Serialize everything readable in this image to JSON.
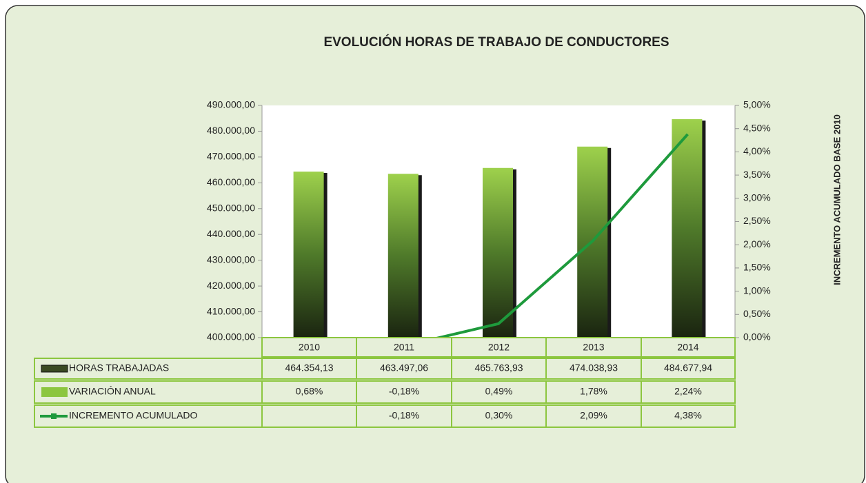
{
  "chart_data": {
    "type": "bar",
    "title": "EVOLUCIÓN HORAS DE TRABAJO DE CONDUCTORES",
    "y2_label": "INCREMENTO ACUMULADO BASE 2010",
    "categories": [
      "2010",
      "2011",
      "2012",
      "2013",
      "2014"
    ],
    "series": [
      {
        "name": "HORAS TRABAJADAS",
        "color": "#8cc63f",
        "values": [
          464354.13,
          463497.06,
          465763.93,
          474038.93,
          484677.94
        ],
        "value_labels": [
          "464.354,13",
          "463.497,06",
          "465.763,93",
          "474.038,93",
          "484.677,94"
        ]
      },
      {
        "name": "VARIACIÓN ANUAL",
        "color": "#8cc63f",
        "values": [
          0.68,
          -0.18,
          0.49,
          1.78,
          2.24
        ],
        "value_labels": [
          "0,68%",
          "-0,18%",
          "0,49%",
          "1,78%",
          "2,24%"
        ]
      },
      {
        "name": "INCREMENTO ACUMULADO",
        "color": "#1e9a3c",
        "axis": "y2",
        "values": [
          null,
          -0.18,
          0.3,
          2.09,
          4.38
        ],
        "value_labels": [
          null,
          "-0,18%",
          "0,30%",
          "2,09%",
          "4,38%"
        ]
      }
    ],
    "ylim": [
      400000,
      490000
    ],
    "yticks": [
      {
        "value": 400000,
        "label": "400.000,00"
      },
      {
        "value": 410000,
        "label": "410.000,00"
      },
      {
        "value": 420000,
        "label": "420.000,00"
      },
      {
        "value": 430000,
        "label": "430.000,00"
      },
      {
        "value": 440000,
        "label": "440.000,00"
      },
      {
        "value": 450000,
        "label": "450.000,00"
      },
      {
        "value": 460000,
        "label": "460.000,00"
      },
      {
        "value": 470000,
        "label": "470.000,00"
      },
      {
        "value": 480000,
        "label": "480.000,00"
      },
      {
        "value": 490000,
        "label": "490.000,00"
      }
    ],
    "y2lim": [
      0,
      5
    ],
    "y2ticks": [
      {
        "value": 0,
        "label": "0,00%"
      },
      {
        "value": 0.5,
        "label": "0,50%"
      },
      {
        "value": 1,
        "label": "1,00%"
      },
      {
        "value": 1.5,
        "label": "1,50%"
      },
      {
        "value": 2,
        "label": "2,00%"
      },
      {
        "value": 2.5,
        "label": "2,50%"
      },
      {
        "value": 3,
        "label": "3,00%"
      },
      {
        "value": 3.5,
        "label": "3,50%"
      },
      {
        "value": 4,
        "label": "4,00%"
      },
      {
        "value": 4.5,
        "label": "4,50%"
      },
      {
        "value": 5,
        "label": "5,00%"
      }
    ],
    "grid": false
  }
}
